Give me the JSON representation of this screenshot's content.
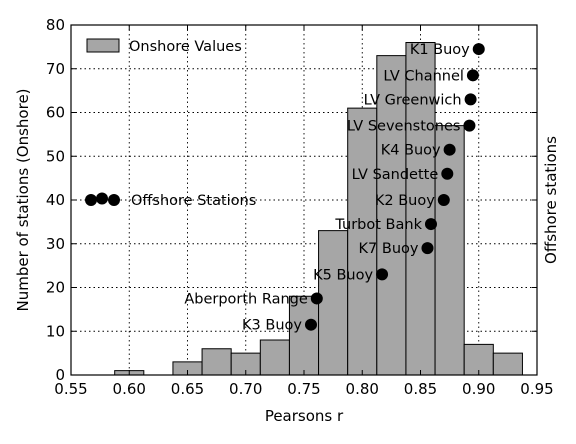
{
  "chart_data": {
    "type": "bar",
    "title": "",
    "xlabel": "Pearsons r",
    "ylabel": "Number of stations (Onshore)",
    "y2label": "Offshore stations",
    "xlim": [
      0.55,
      0.95
    ],
    "ylim": [
      0,
      80
    ],
    "x_ticks": [
      0.55,
      0.6,
      0.65,
      0.7,
      0.75,
      0.8,
      0.85,
      0.9,
      0.95
    ],
    "x_tick_labels": [
      "0.55",
      "0.60",
      "0.65",
      "0.70",
      "0.75",
      "0.80",
      "0.85",
      "0.90",
      "0.95"
    ],
    "y_ticks": [
      0,
      10,
      20,
      30,
      40,
      50,
      60,
      70,
      80
    ],
    "y_tick_labels": [
      "0",
      "10",
      "20",
      "30",
      "40",
      "50",
      "60",
      "70",
      "80"
    ],
    "grid": true,
    "grid_style": "dotted",
    "legend_placement": "top-left",
    "colors": {
      "bar_fill": "#a6a6a6",
      "bar_edge": "#000000",
      "point": "#000000",
      "grid": "#000000"
    },
    "histogram": {
      "name": "Onshore Values",
      "bins": [
        {
          "start": 0.5625,
          "end": 0.5875,
          "count": 0
        },
        {
          "start": 0.5875,
          "end": 0.6125,
          "count": 1
        },
        {
          "start": 0.6125,
          "end": 0.6375,
          "count": 0
        },
        {
          "start": 0.6375,
          "end": 0.6625,
          "count": 3
        },
        {
          "start": 0.6625,
          "end": 0.6875,
          "count": 6
        },
        {
          "start": 0.6875,
          "end": 0.7125,
          "count": 5
        },
        {
          "start": 0.7125,
          "end": 0.7375,
          "count": 8
        },
        {
          "start": 0.7375,
          "end": 0.7625,
          "count": 18
        },
        {
          "start": 0.7625,
          "end": 0.7875,
          "count": 33
        },
        {
          "start": 0.7875,
          "end": 0.8125,
          "count": 61
        },
        {
          "start": 0.8125,
          "end": 0.8375,
          "count": 73
        },
        {
          "start": 0.8375,
          "end": 0.8625,
          "count": 76
        },
        {
          "start": 0.8625,
          "end": 0.8875,
          "count": 57
        },
        {
          "start": 0.8875,
          "end": 0.9125,
          "count": 7
        },
        {
          "start": 0.9125,
          "end": 0.9375,
          "count": 5
        }
      ]
    },
    "offshore_series": {
      "name": "Offshore Stations",
      "points": [
        {
          "label": "K1 Buoy",
          "x": 0.9,
          "y": 74.5
        },
        {
          "label": "LV Channel",
          "x": 0.895,
          "y": 68.5
        },
        {
          "label": "LV Greenwich",
          "x": 0.893,
          "y": 63.0
        },
        {
          "label": "LV Sevenstones",
          "x": 0.892,
          "y": 57.0
        },
        {
          "label": "K4 Buoy",
          "x": 0.875,
          "y": 51.5
        },
        {
          "label": "LV Sandette",
          "x": 0.873,
          "y": 46.0
        },
        {
          "label": "K2 Buoy",
          "x": 0.87,
          "y": 40.0
        },
        {
          "label": "Turbot Bank",
          "x": 0.859,
          "y": 34.5
        },
        {
          "label": "K7 Buoy",
          "x": 0.856,
          "y": 29.0
        },
        {
          "label": "K5 Buoy",
          "x": 0.817,
          "y": 23.0
        },
        {
          "label": "Aberporth Range",
          "x": 0.761,
          "y": 17.5
        },
        {
          "label": "K3 Buoy",
          "x": 0.756,
          "y": 11.5
        }
      ]
    }
  }
}
